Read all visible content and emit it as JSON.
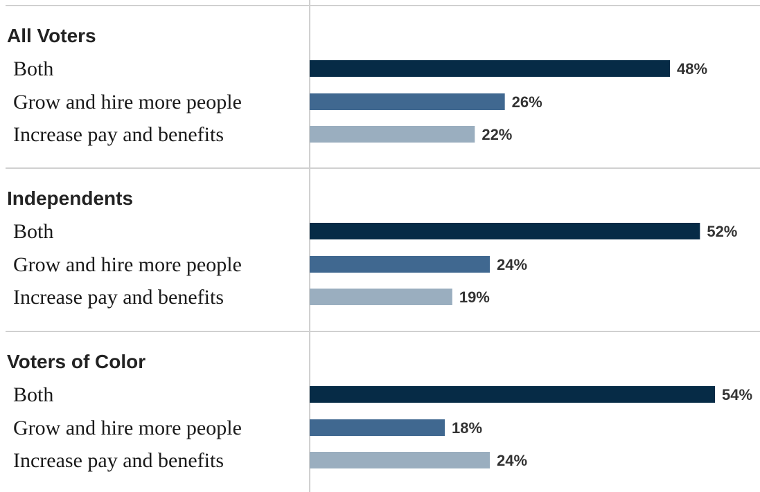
{
  "chart_data": {
    "type": "bar",
    "orientation": "horizontal",
    "categories": [
      "Both",
      "Grow and hire more people",
      "Increase pay and benefits"
    ],
    "groups": [
      {
        "name": "All Voters",
        "values": [
          48,
          26,
          22
        ]
      },
      {
        "name": "Independents",
        "values": [
          52,
          24,
          19
        ]
      },
      {
        "name": "Voters of Color",
        "values": [
          54,
          18,
          24
        ]
      }
    ],
    "value_suffix": "%",
    "xlim": [
      0,
      54
    ],
    "colors": [
      "#062b46",
      "#406890",
      "#9aaebf"
    ],
    "separator_color": "#d0d0d0",
    "grid": false,
    "legend": "none"
  }
}
